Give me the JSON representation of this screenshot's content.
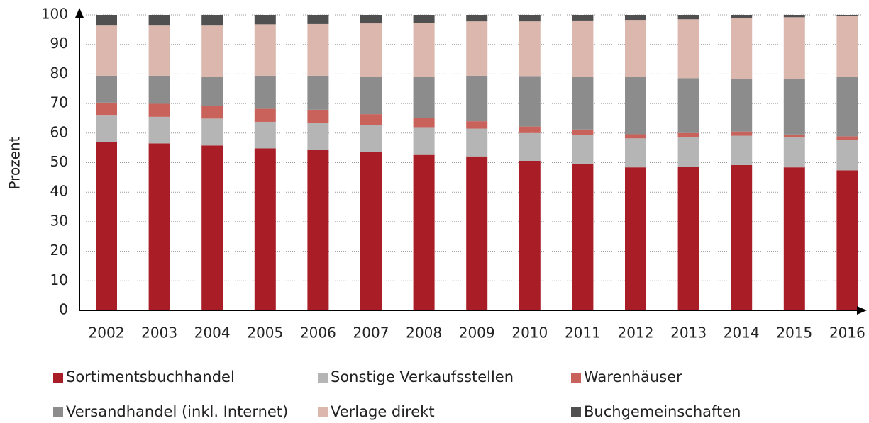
{
  "chart_data": {
    "type": "stacked_bar",
    "ylabel": "Prozent",
    "categories": [
      "2002",
      "2003",
      "2004",
      "2005",
      "2006",
      "2007",
      "2008",
      "2009",
      "2010",
      "2011",
      "2012",
      "2013",
      "2014",
      "2015",
      "2016"
    ],
    "ylim": [
      0,
      100
    ],
    "yticks": [
      0,
      10,
      20,
      30,
      40,
      50,
      60,
      70,
      80,
      90,
      100
    ],
    "grid": true,
    "legend": "bottom",
    "series": [
      {
        "name": "Sortimentsbuchhandel",
        "color": "#a91e26",
        "values": [
          57.0,
          56.5,
          55.8,
          54.8,
          54.3,
          53.6,
          52.6,
          52.1,
          50.6,
          49.6,
          48.4,
          48.6,
          49.2,
          48.4,
          47.4
        ]
      },
      {
        "name": "Sonstige Verkaufsstellen",
        "color": "#b5b5b5",
        "values": [
          8.9,
          9.0,
          9.1,
          9.0,
          9.2,
          9.2,
          9.4,
          9.4,
          9.4,
          9.7,
          9.8,
          10.0,
          9.9,
          10.1,
          10.3
        ]
      },
      {
        "name": "Warenhäuser",
        "color": "#c8625a",
        "values": [
          4.4,
          4.4,
          4.3,
          4.4,
          4.4,
          3.6,
          3.0,
          2.5,
          2.2,
          1.9,
          1.4,
          1.4,
          1.4,
          1.0,
          1.2
        ]
      },
      {
        "name": "Versandhandel (inkl. Internet)",
        "color": "#8c8c8c",
        "values": [
          9.1,
          9.5,
          9.9,
          11.2,
          11.5,
          12.7,
          14.0,
          15.4,
          17.1,
          17.8,
          19.3,
          18.6,
          17.9,
          18.9,
          20.0
        ]
      },
      {
        "name": "Verlage direkt",
        "color": "#dbb7ad",
        "values": [
          17.2,
          17.2,
          17.5,
          17.4,
          17.5,
          18.0,
          18.2,
          18.4,
          18.5,
          19.1,
          19.4,
          19.9,
          20.4,
          20.8,
          20.7
        ]
      },
      {
        "name": "Buchgemeinschaften",
        "color": "#505050",
        "values": [
          3.4,
          3.4,
          3.4,
          3.2,
          3.1,
          2.9,
          2.8,
          2.2,
          2.2,
          1.9,
          1.7,
          1.5,
          1.2,
          0.8,
          0.4
        ]
      }
    ]
  }
}
